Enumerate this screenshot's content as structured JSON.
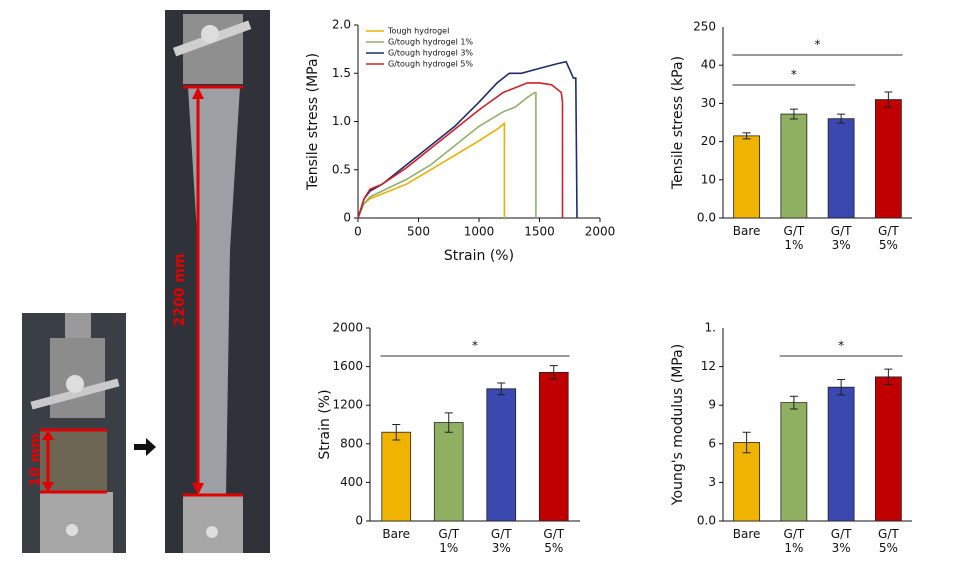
{
  "photos": {
    "left_label": "10 mm",
    "right_label": "2200 mm"
  },
  "chart_data": [
    {
      "type": "line",
      "y_label": "Tensile stress (MPa)",
      "x_label": "Strain (%)",
      "xlim": [
        0,
        2000
      ],
      "xticks": [
        0,
        500,
        1000,
        1500,
        2000
      ],
      "ylim": [
        0,
        2
      ],
      "yticks": [
        0,
        0.5,
        {
          "value": 1,
          "label": "1.0"
        },
        1.5,
        {
          "value": 2,
          "label": "2.0"
        }
      ],
      "legend": "upper-left",
      "series": [
        {
          "name": "Tough hydrogel",
          "color": "#e8b000",
          "x": [
            0,
            50,
            100,
            200,
            400,
            600,
            800,
            1000,
            1150,
            1210,
            1210
          ],
          "values": [
            0,
            0.15,
            0.2,
            0.25,
            0.35,
            0.5,
            0.65,
            0.8,
            0.92,
            0.98,
            0
          ]
        },
        {
          "name": "G/tough hydrogel 1%",
          "color": "#8fb06a",
          "x": [
            0,
            50,
            100,
            200,
            400,
            600,
            800,
            1000,
            1200,
            1300,
            1400,
            1460,
            1470,
            1470
          ],
          "values": [
            0,
            0.15,
            0.22,
            0.28,
            0.4,
            0.55,
            0.75,
            0.95,
            1.1,
            1.15,
            1.25,
            1.3,
            1.3,
            0
          ]
        },
        {
          "name": "G/tough hydrogel 3%",
          "color": "#1f2d6b",
          "x": [
            0,
            50,
            100,
            200,
            400,
            600,
            800,
            1000,
            1150,
            1250,
            1350,
            1500,
            1650,
            1720,
            1780,
            1800,
            1810
          ],
          "values": [
            0,
            0.2,
            0.28,
            0.35,
            0.55,
            0.75,
            0.95,
            1.2,
            1.4,
            1.5,
            1.5,
            1.55,
            1.6,
            1.62,
            1.45,
            1.45,
            0
          ]
        },
        {
          "name": "G/tough hydrogel 5%",
          "color": "#d0202a",
          "x": [
            0,
            50,
            100,
            200,
            400,
            600,
            800,
            1000,
            1200,
            1400,
            1500,
            1600,
            1680,
            1690,
            1690
          ],
          "values": [
            0,
            0.2,
            0.3,
            0.35,
            0.52,
            0.72,
            0.92,
            1.12,
            1.3,
            1.4,
            1.4,
            1.38,
            1.3,
            1.2,
            0
          ]
        }
      ]
    },
    {
      "type": "bar",
      "y_label": "Tensile stress (kPa)",
      "categories": [
        "Bare",
        "G/T 1%",
        "G/T 3%",
        "G/T 5%"
      ],
      "values": [
        21.5,
        27.2,
        26,
        31
      ],
      "errors": [
        0.8,
        1.3,
        1.2,
        2
      ],
      "colors": [
        "#f0b400",
        "#8fb060",
        "#3a48b0",
        "#c00000"
      ],
      "ylim": [
        0,
        50
      ],
      "yticks": [
        {
          "value": 0,
          "label": "0.0"
        },
        10,
        20,
        30,
        40
      ],
      "y_top_label": "250",
      "significance": [
        {
          "from": 0,
          "to": 3,
          "label": "*"
        },
        {
          "from": 0,
          "to": 2,
          "label": "*"
        }
      ]
    },
    {
      "type": "bar",
      "y_label": "Strain (%)",
      "categories": [
        "Bare",
        "G/T 1%",
        "G/T 3%",
        "G/T 5%"
      ],
      "values": [
        920,
        1020,
        1370,
        1540
      ],
      "errors": [
        80,
        100,
        60,
        70
      ],
      "colors": [
        "#f0b400",
        "#8fb060",
        "#3a48b0",
        "#c00000"
      ],
      "ylim": [
        0,
        2000
      ],
      "yticks": [
        0,
        400,
        800,
        1200,
        1600,
        2000
      ],
      "significance": [
        {
          "from": 0,
          "to": 3,
          "label": "*"
        }
      ]
    },
    {
      "type": "bar",
      "y_label": "Young's modulus (MPa)",
      "categories": [
        "Bare",
        "G/T 1%",
        "G/T 3%",
        "G/T 5%"
      ],
      "values": [
        6.1,
        9.2,
        10.4,
        11.2
      ],
      "errors": [
        0.8,
        0.5,
        0.6,
        0.6
      ],
      "colors": [
        "#f0b400",
        "#8fb060",
        "#3a48b0",
        "#c00000"
      ],
      "ylim": [
        0,
        15
      ],
      "yticks": [
        {
          "value": 0,
          "label": "0.0"
        },
        3,
        6,
        9,
        12
      ],
      "y_top_label": "1.",
      "significance": [
        {
          "from": 1,
          "to": 3,
          "label": "*"
        }
      ]
    }
  ]
}
